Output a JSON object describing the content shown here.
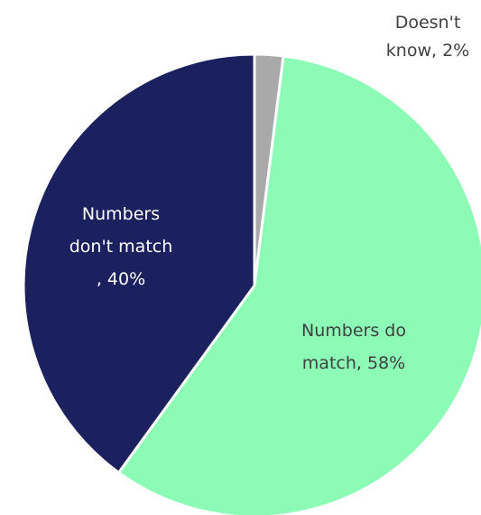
{
  "chart_data": {
    "type": "pie",
    "title": "",
    "slices": [
      {
        "category": "Doesn't know",
        "value": 2,
        "color": "#a9a9a9",
        "label_lines": [
          "Doesn't",
          "know, 2%"
        ],
        "label_color": "#404040"
      },
      {
        "category": "Numbers do match",
        "value": 58,
        "color": "#8cfbb5",
        "label_lines": [
          "Numbers do",
          "match, 58%"
        ],
        "label_color": "#404040"
      },
      {
        "category": "Numbers don't match",
        "value": 40,
        "color": "#1a215e",
        "label_lines": [
          "Numbers",
          "don't match",
          ", 40%"
        ],
        "label_color": "#ffffff"
      }
    ],
    "legend": "none"
  }
}
